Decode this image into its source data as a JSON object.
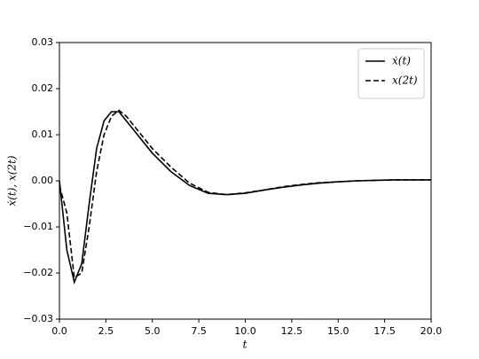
{
  "chart_data": {
    "type": "line",
    "x_label": "t",
    "y_label": "ẋ(t),  x(2t)",
    "x": [
      0,
      0.4,
      0.8,
      1.2,
      1.6,
      2.0,
      2.4,
      2.8,
      3.2,
      3.6,
      4.0,
      5,
      6,
      7,
      8,
      9,
      10,
      11,
      12,
      13,
      14,
      15,
      16,
      17,
      18,
      19,
      20
    ],
    "series": [
      {
        "name": "ẋ(t)",
        "color": "#000000",
        "linestyle": "solid",
        "values": [
          0,
          -0.015,
          -0.022,
          -0.018,
          -0.005,
          0.007,
          0.013,
          0.015,
          0.015,
          0.013,
          0.011,
          0.006,
          0.002,
          -0.001,
          -0.0027,
          -0.003,
          -0.0027,
          -0.002,
          -0.0014,
          -0.0009,
          -0.0005,
          -0.0002,
          0,
          0.0001,
          0.0002,
          0.0002,
          0.0002
        ]
      },
      {
        "name": "x(2t)",
        "color": "#000000",
        "linestyle": "dashed",
        "values": [
          -0.001,
          -0.007,
          -0.021,
          -0.02,
          -0.01,
          0.002,
          0.01,
          0.014,
          0.0153,
          0.014,
          0.012,
          0.007,
          0.003,
          -0.0005,
          -0.0025,
          -0.003,
          -0.0026,
          -0.002,
          -0.0013,
          -0.0008,
          -0.0004,
          -0.0002,
          0,
          0.0001,
          0.0002,
          0.0002,
          0.0002
        ]
      }
    ],
    "xlim": [
      0,
      20
    ],
    "xticks": [
      {
        "value": 0,
        "label": "0.0"
      },
      {
        "value": 2.5,
        "label": "2.5"
      },
      {
        "value": 5,
        "label": "5.0"
      },
      {
        "value": 7.5,
        "label": "7.5"
      },
      {
        "value": 10,
        "label": "10.0"
      },
      {
        "value": 12.5,
        "label": "12.5"
      },
      {
        "value": 15,
        "label": "15.0"
      },
      {
        "value": 17.5,
        "label": "17.5"
      },
      {
        "value": 20,
        "label": "20.0"
      }
    ],
    "ylim": [
      -0.03,
      0.03
    ],
    "yticks": [
      {
        "value": -0.03,
        "label": "−0.03"
      },
      {
        "value": -0.02,
        "label": "−0.02"
      },
      {
        "value": -0.01,
        "label": "−0.01"
      },
      {
        "value": 0,
        "label": "0.00"
      },
      {
        "value": 0.01,
        "label": "0.01"
      },
      {
        "value": 0.02,
        "label": "0.02"
      },
      {
        "value": 0.03,
        "label": "0.03"
      }
    ],
    "legend": "upper right",
    "grid": false
  }
}
